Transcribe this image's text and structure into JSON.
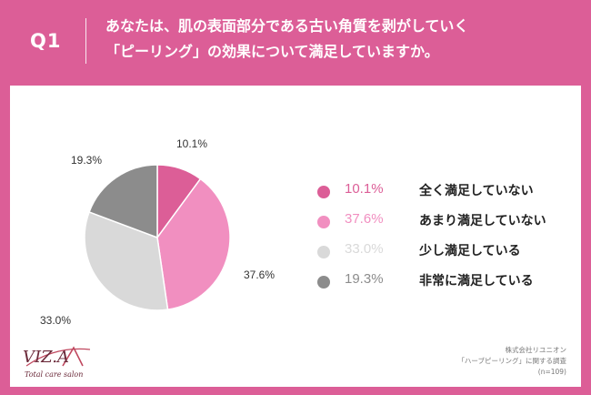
{
  "header": {
    "q_label": "Q1",
    "question_line1": "あなたは、肌の表面部分である古い角質を剥がしていく",
    "question_line2": "「ピーリング」の効果について満足していますか。"
  },
  "chart_data": {
    "type": "pie",
    "title": "",
    "slices": [
      {
        "label": "全く満足していない",
        "value": 10.1,
        "display": "10.1%",
        "color": "#dc5e97"
      },
      {
        "label": "あまり満足していない",
        "value": 37.6,
        "display": "37.6%",
        "color": "#f18fc0"
      },
      {
        "label": "少し満足している",
        "value": 33.0,
        "display": "33.0%",
        "color": "#d9d9d9"
      },
      {
        "label": "非常に満足している",
        "value": 19.3,
        "display": "19.3%",
        "color": "#8c8c8c"
      }
    ],
    "legend_position": "right"
  },
  "source": {
    "line1": "株式会社リユニオン",
    "line2": "「ハーブピーリング」に関する調査",
    "line3": "(n=109)"
  },
  "logo": {
    "brand": "VIZ.A",
    "tagline": "Total care salon"
  }
}
